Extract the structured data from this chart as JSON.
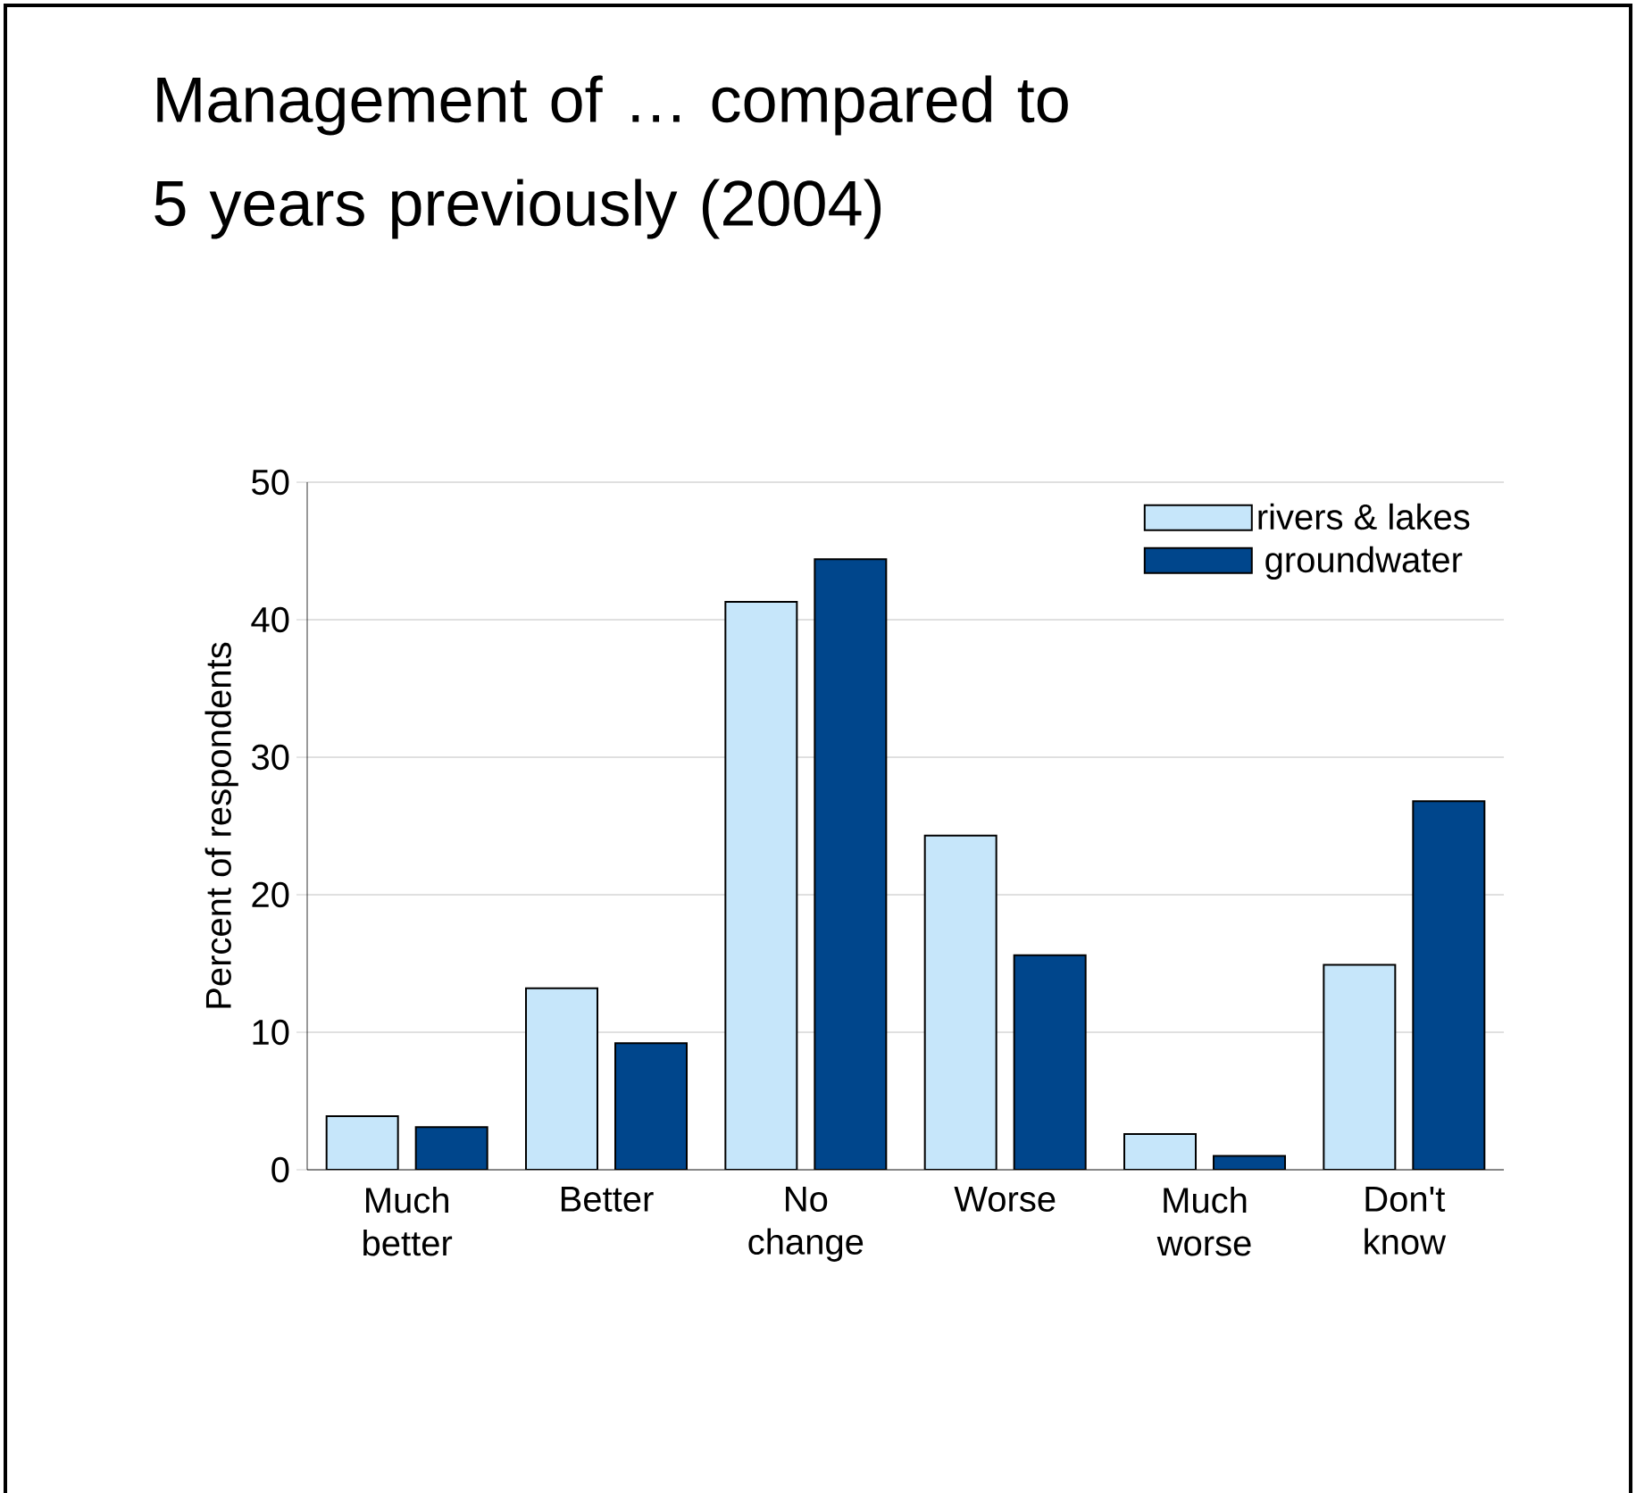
{
  "chart_data": {
    "type": "bar",
    "title": "Management of … compared to 5 years previously (2004)",
    "ylabel": "Percent of respondents",
    "categories": [
      "Much better",
      "Better",
      "No change",
      "Worse",
      "Much worse",
      "Don't know"
    ],
    "series": [
      {
        "name": "rivers & lakes",
        "color": "#c6e6fa",
        "values": [
          3.9,
          13.2,
          41.3,
          24.3,
          2.6,
          14.9
        ]
      },
      {
        "name": "groundwater",
        "color": "#00468c",
        "values": [
          3.1,
          9.2,
          44.4,
          15.6,
          1.0,
          26.8
        ]
      }
    ],
    "ylim": [
      0,
      50
    ],
    "yticks": [
      0,
      10,
      20,
      30,
      40,
      50
    ],
    "grid": "y",
    "legend": "top right"
  }
}
